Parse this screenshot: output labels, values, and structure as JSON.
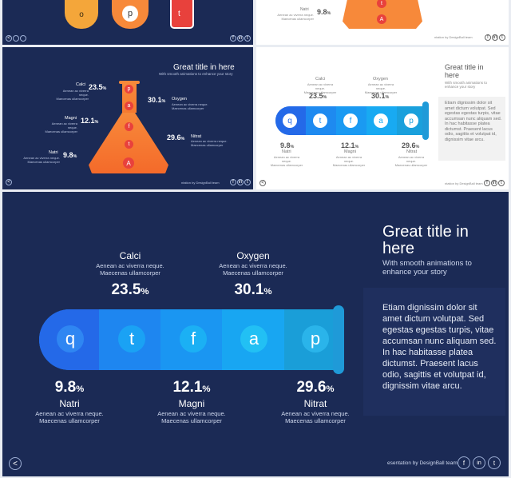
{
  "elements": [
    {
      "key": "calci",
      "name": "Calci",
      "value": "23.5",
      "desc1": "Aenean ac viverra neque.",
      "desc2": "Maecenas ullamcorper"
    },
    {
      "key": "oxygen",
      "name": "Oxygen",
      "value": "30.1",
      "desc1": "Aenean ac viverra neque.",
      "desc2": "Maecenas ullamcorper"
    },
    {
      "key": "natri",
      "name": "Natri",
      "value": "9.8",
      "desc1": "Aenean ac viverra neque.",
      "desc2": "Maecenas ullamcorper"
    },
    {
      "key": "magni",
      "name": "Magni",
      "value": "12.1",
      "desc1": "Aenean ac viverra neque.",
      "desc2": "Maecenas ullamcorper"
    },
    {
      "key": "nitrat",
      "name": "Nitrat",
      "value": "29.6",
      "desc1": "Aenean ac viverra neque.",
      "desc2": "Maecenas ullamcorper"
    }
  ],
  "pct_unit": "%",
  "tube_letters": [
    "q",
    "t",
    "f",
    "a",
    "p"
  ],
  "flask_letters": [
    "p",
    "a",
    "f",
    "t",
    "A"
  ],
  "beaker_letters": [
    "o",
    "p",
    "t"
  ],
  "headline": {
    "title_line1": "Great title in",
    "title_line2": "here",
    "title_full": "Great title in here",
    "subtitle_line1": "With smooth animations to",
    "subtitle_line2": "enhance your story",
    "subtitle_full": "With smooth animations to enhance your story"
  },
  "body_text": "Etiam dignissim dolor sit amet dictum volutpat. Sed egestas egestas turpis, vitae accumsan nunc aliquam sed. In hac habitasse platea dictumst. Praesent lacus odio, sagittis et volutpat id, dignissim vitae arcu.",
  "footer": {
    "credit": "esentation by DesignBall team",
    "credit_small": "ntation by DesignBall team",
    "social": [
      "f",
      "in",
      "t"
    ],
    "nav_prev": "<"
  },
  "colors": {
    "navy": "#1b2a55",
    "tube_blue": "#1f7ff0",
    "flask_orange": "#f7893a",
    "accent_red": "#e8413c"
  }
}
